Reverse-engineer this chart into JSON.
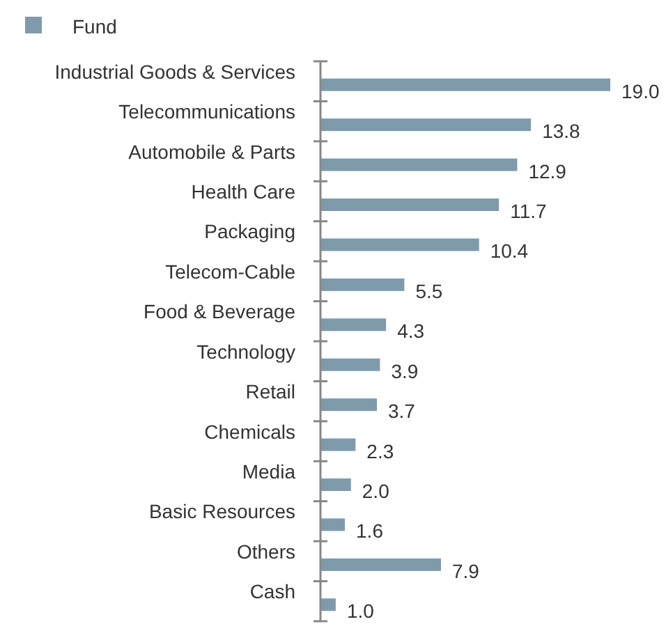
{
  "chart_data": {
    "type": "bar",
    "orientation": "horizontal",
    "categories": [
      "Industrial Goods & Services",
      "Telecommunications",
      "Automobile & Parts",
      "Health Care",
      "Packaging",
      "Telecom-Cable",
      "Food & Beverage",
      "Technology",
      "Retail",
      "Chemicals",
      "Media",
      "Basic Resources",
      "Others",
      "Cash"
    ],
    "series": [
      {
        "name": "Fund",
        "color": "#7f9aab",
        "values": [
          19.0,
          13.8,
          12.9,
          11.7,
          10.4,
          5.5,
          4.3,
          3.9,
          3.7,
          2.3,
          2.0,
          1.6,
          7.9,
          1.0
        ],
        "value_labels": [
          "19.0",
          "13.8",
          "12.9",
          "11.7",
          "10.4",
          "5.5",
          "4.3",
          "3.9",
          "3.7",
          "2.3",
          "2.0",
          "1.6",
          "7.9",
          "1.0"
        ]
      }
    ],
    "xlim": [
      0,
      19
    ],
    "legend": "top left"
  }
}
